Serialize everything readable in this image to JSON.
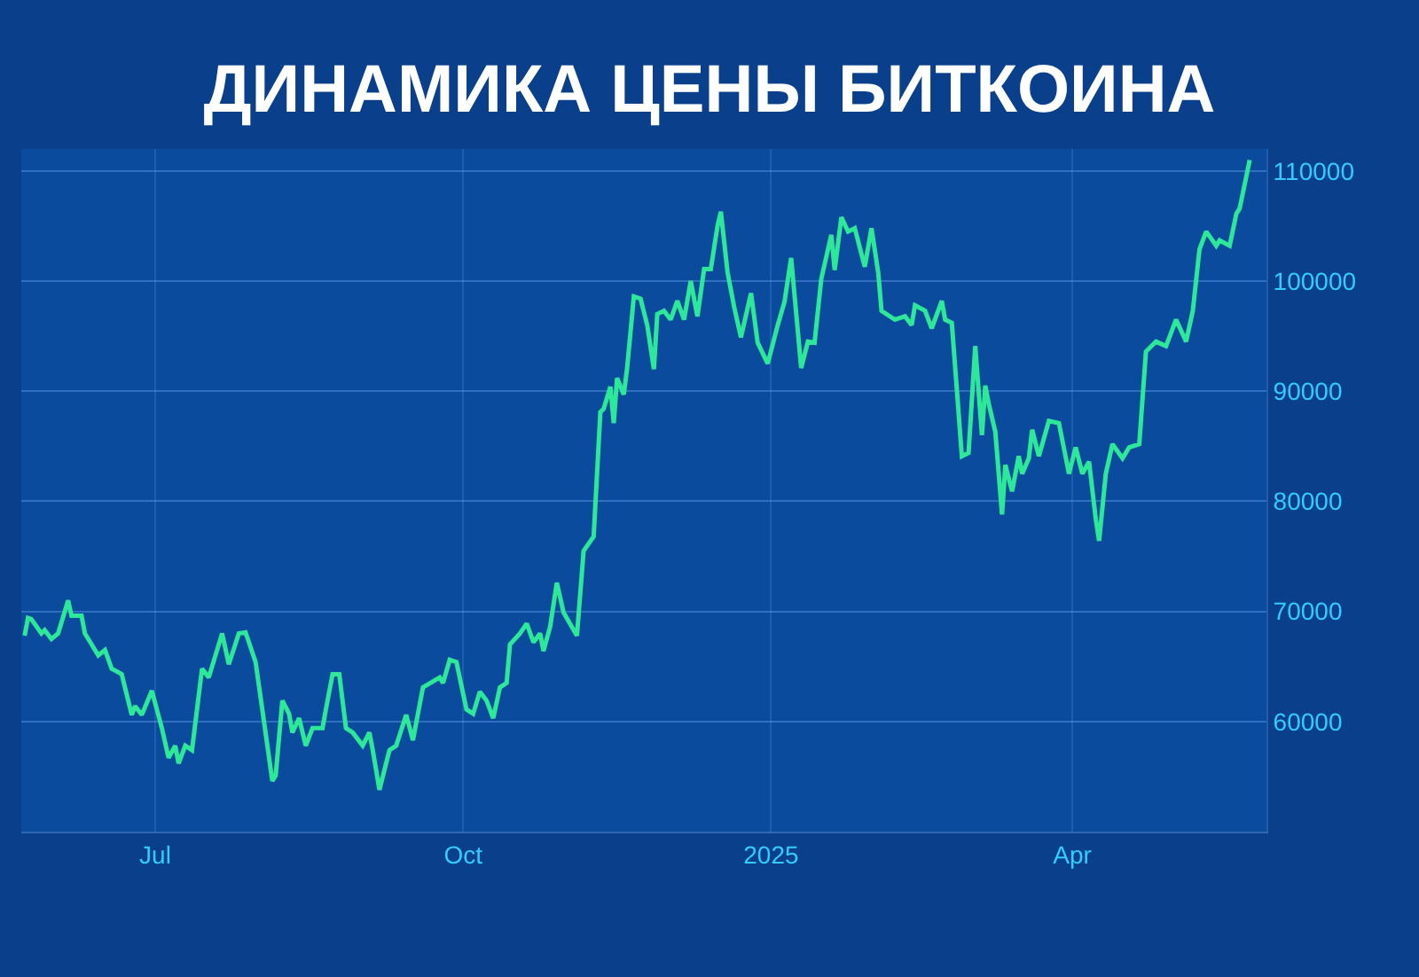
{
  "chart_data": {
    "type": "line",
    "title": "ДИНАМИКА ЦЕНЫ БИТКОИНА",
    "x": [
      "2024-05-23",
      "2024-05-24",
      "2024-05-25",
      "2024-05-28",
      "2024-05-29",
      "2024-05-31",
      "2024-06-02",
      "2024-06-05",
      "2024-06-06",
      "2024-06-09",
      "2024-06-10",
      "2024-06-14",
      "2024-06-16",
      "2024-06-18",
      "2024-06-21",
      "2024-06-24",
      "2024-06-25",
      "2024-06-27",
      "2024-06-30",
      "2024-07-03",
      "2024-07-05",
      "2024-07-07",
      "2024-07-08",
      "2024-07-10",
      "2024-07-12",
      "2024-07-15",
      "2024-07-17",
      "2024-07-21",
      "2024-07-23",
      "2024-07-26",
      "2024-07-28",
      "2024-07-31",
      "2024-08-02",
      "2024-08-05",
      "2024-08-06",
      "2024-08-08",
      "2024-08-10",
      "2024-08-11",
      "2024-08-13",
      "2024-08-15",
      "2024-08-17",
      "2024-08-20",
      "2024-08-21",
      "2024-08-23",
      "2024-08-25",
      "2024-08-27",
      "2024-08-29",
      "2024-09-01",
      "2024-09-03",
      "2024-09-04",
      "2024-09-06",
      "2024-09-09",
      "2024-09-11",
      "2024-09-14",
      "2024-09-16",
      "2024-09-19",
      "2024-09-24",
      "2024-09-25",
      "2024-09-27",
      "2024-09-29",
      "2024-10-02",
      "2024-10-04",
      "2024-10-06",
      "2024-10-08",
      "2024-10-10",
      "2024-10-12",
      "2024-10-14",
      "2024-10-15",
      "2024-10-18",
      "2024-10-20",
      "2024-10-22",
      "2024-10-24",
      "2024-10-25",
      "2024-10-27",
      "2024-10-29",
      "2024-10-31",
      "2024-11-04",
      "2024-11-06",
      "2024-11-09",
      "2024-11-11",
      "2024-11-12",
      "2024-11-14",
      "2024-11-15",
      "2024-11-16",
      "2024-11-18",
      "2024-11-19",
      "2024-11-21",
      "2024-11-23",
      "2024-11-25",
      "2024-11-27",
      "2024-11-28",
      "2024-11-30",
      "2024-12-02",
      "2024-12-04",
      "2024-12-06",
      "2024-12-08",
      "2024-12-10",
      "2024-12-12",
      "2024-12-14",
      "2024-12-16",
      "2024-12-17",
      "2024-12-19",
      "2024-12-21",
      "2024-12-23",
      "2024-12-26",
      "2024-12-28",
      "2024-12-31",
      "2025-01-03",
      "2025-01-05",
      "2025-01-07",
      "2025-01-10",
      "2025-01-12",
      "2025-01-14",
      "2025-01-16",
      "2025-01-19",
      "2025-01-20",
      "2025-01-22",
      "2025-01-24",
      "2025-01-26",
      "2025-01-29",
      "2025-01-31",
      "2025-02-02",
      "2025-02-03",
      "2025-02-07",
      "2025-02-10",
      "2025-02-12",
      "2025-02-13",
      "2025-02-16",
      "2025-02-18",
      "2025-02-21",
      "2025-02-22",
      "2025-02-24",
      "2025-02-27",
      "2025-03-01",
      "2025-03-03",
      "2025-03-05",
      "2025-03-06",
      "2025-03-07",
      "2025-03-09",
      "2025-03-11",
      "2025-03-12",
      "2025-03-14",
      "2025-03-16",
      "2025-03-17",
      "2025-03-19",
      "2025-03-20",
      "2025-03-22",
      "2025-03-25",
      "2025-03-28",
      "2025-03-31",
      "2025-04-02",
      "2025-04-04",
      "2025-04-06",
      "2025-04-08",
      "2025-04-09",
      "2025-04-11",
      "2025-04-13",
      "2025-04-16",
      "2025-04-18",
      "2025-04-21",
      "2025-04-23",
      "2025-04-26",
      "2025-04-29",
      "2025-05-02",
      "2025-05-05",
      "2025-05-07",
      "2025-05-09",
      "2025-05-11",
      "2025-05-14",
      "2025-05-15",
      "2025-05-18",
      "2025-05-20",
      "2025-05-21",
      "2025-05-24"
    ],
    "series": [
      {
        "color": "#2ee89a",
        "values": [
          67800,
          69400,
          69300,
          68000,
          68300,
          67500,
          68000,
          71000,
          69600,
          69600,
          68000,
          66000,
          66500,
          64800,
          64300,
          60600,
          61400,
          60600,
          62800,
          59400,
          56700,
          57800,
          56200,
          57800,
          57400,
          64800,
          64000,
          68000,
          65200,
          68000,
          68100,
          65400,
          61100,
          54600,
          55100,
          61900,
          60700,
          59000,
          60300,
          57800,
          59400,
          59400,
          61100,
          64300,
          64300,
          59400,
          59000,
          57800,
          59000,
          57400,
          53800,
          57400,
          57800,
          60600,
          58300,
          63100,
          64000,
          63500,
          65600,
          65400,
          61100,
          60700,
          62700,
          61900,
          60300,
          63100,
          63500,
          67000,
          68000,
          68900,
          67200,
          68000,
          66400,
          68600,
          72600,
          69900,
          67800,
          75500,
          76800,
          88100,
          88400,
          90400,
          87100,
          91200,
          89700,
          92100,
          98600,
          98400,
          96000,
          92000,
          97000,
          97300,
          96500,
          98200,
          96500,
          100000,
          96800,
          101100,
          101100,
          105000,
          106300,
          100800,
          97600,
          94900,
          98900,
          94400,
          92500,
          96000,
          98100,
          102100,
          92100,
          94500,
          94400,
          100200,
          104200,
          101000,
          105800,
          104500,
          104800,
          101300,
          104800,
          100800,
          97300,
          96500,
          96800,
          96000,
          97800,
          97300,
          95700,
          98200,
          96500,
          96200,
          84100,
          84400,
          94100,
          86000,
          90500,
          88900,
          86300,
          78800,
          83300,
          80900,
          84100,
          82500,
          83900,
          86500,
          84100,
          87300,
          87100,
          82500,
          84900,
          82500,
          83600,
          78400,
          76400,
          82500,
          85200,
          83900,
          84900,
          85200,
          93600,
          94500,
          94100,
          96500,
          94500,
          97300,
          102900,
          104500,
          103200,
          103700,
          103200,
          106100,
          106600,
          111000
        ]
      }
    ],
    "xlim": [
      "2024-05-22",
      "2025-05-29"
    ],
    "xticks": [
      {
        "value": "2024-07-01",
        "label": "Jul"
      },
      {
        "value": "2024-10-01",
        "label": "Oct"
      },
      {
        "value": "2025-01-01",
        "label": "2025"
      },
      {
        "value": "2025-04-01",
        "label": "Apr"
      }
    ],
    "ylim": [
      50000,
      112000
    ],
    "yticks": [
      {
        "value": 50000,
        "label": null
      },
      60000,
      70000,
      80000,
      90000,
      100000,
      110000
    ],
    "grid": true,
    "line_style": "solid",
    "marker": "none"
  }
}
